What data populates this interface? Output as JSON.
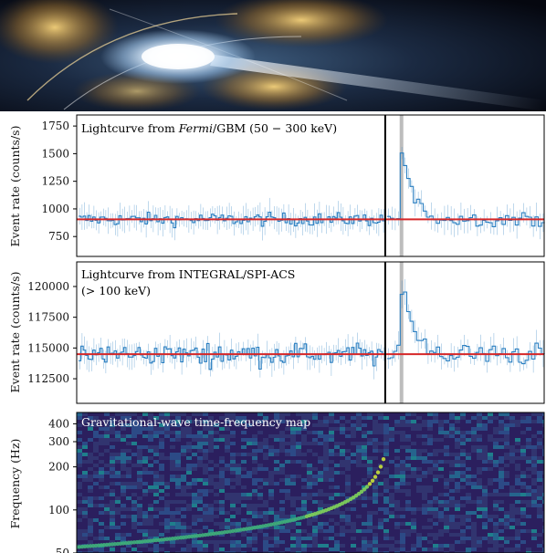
{
  "banner": {
    "icon": "neutron-star-merger-illustration"
  },
  "colors": {
    "curve": "#2a7fc1",
    "fit": "#d62728",
    "marker": "#bdbdbd",
    "divider": "#000000"
  },
  "chart_data": [
    {
      "type": "line",
      "title": "Lightcurve from Fermi/GBM (50 − 300 keV)",
      "title_parts": {
        "pre": "Lightcurve from ",
        "italic": "Fermi",
        "post": "/GBM (50 − 300 keV)"
      },
      "ylabel": "Event rate (counts/s)",
      "ylim": [
        570,
        1850
      ],
      "yticks": [
        {
          "value": 750,
          "label": "750"
        },
        {
          "value": 1000,
          "label": "1000"
        },
        {
          "value": 1250,
          "label": "1250"
        },
        {
          "value": 1500,
          "label": "1500"
        },
        {
          "value": 1750,
          "label": "1750"
        }
      ],
      "background_level": 905,
      "noise_amplitude": 75,
      "peak": {
        "value": 1640,
        "peak_fraction": 0.3
      },
      "split_fraction": 0.66,
      "marker_fraction": 0.31,
      "grid": false,
      "legend": "none"
    },
    {
      "type": "line",
      "title": "Lightcurve from INTEGRAL/SPI-ACS",
      "title_line2": "(> 100 keV)",
      "ylabel": "Event rate (counts/s)",
      "ylim": [
        110500,
        122000
      ],
      "yticks": [
        {
          "value": 112500,
          "label": "112500"
        },
        {
          "value": 115000,
          "label": "115000"
        },
        {
          "value": 117500,
          "label": "117500"
        },
        {
          "value": 120000,
          "label": "120000"
        }
      ],
      "background_level": 114500,
      "noise_amplitude": 1100,
      "peak": {
        "value": 121000,
        "peak_fraction": 0.31
      },
      "split_fraction": 0.66,
      "marker_fraction": 0.31,
      "grid": false,
      "legend": "none"
    },
    {
      "type": "heatmap",
      "title": "Gravitational-wave time-frequency map",
      "ylabel": "Frequency (Hz)",
      "yscale": "log",
      "ylim": [
        50,
        480
      ],
      "yticks": [
        {
          "value": 50,
          "label": "50"
        },
        {
          "value": 100,
          "label": "100"
        },
        {
          "value": 200,
          "label": "200"
        },
        {
          "value": 300,
          "label": "300"
        },
        {
          "value": 400,
          "label": "400"
        }
      ],
      "chirp": {
        "start_frequency": 55,
        "end_frequency": 400,
        "end_fraction": 0.66
      },
      "colormap": "viridis"
    }
  ]
}
